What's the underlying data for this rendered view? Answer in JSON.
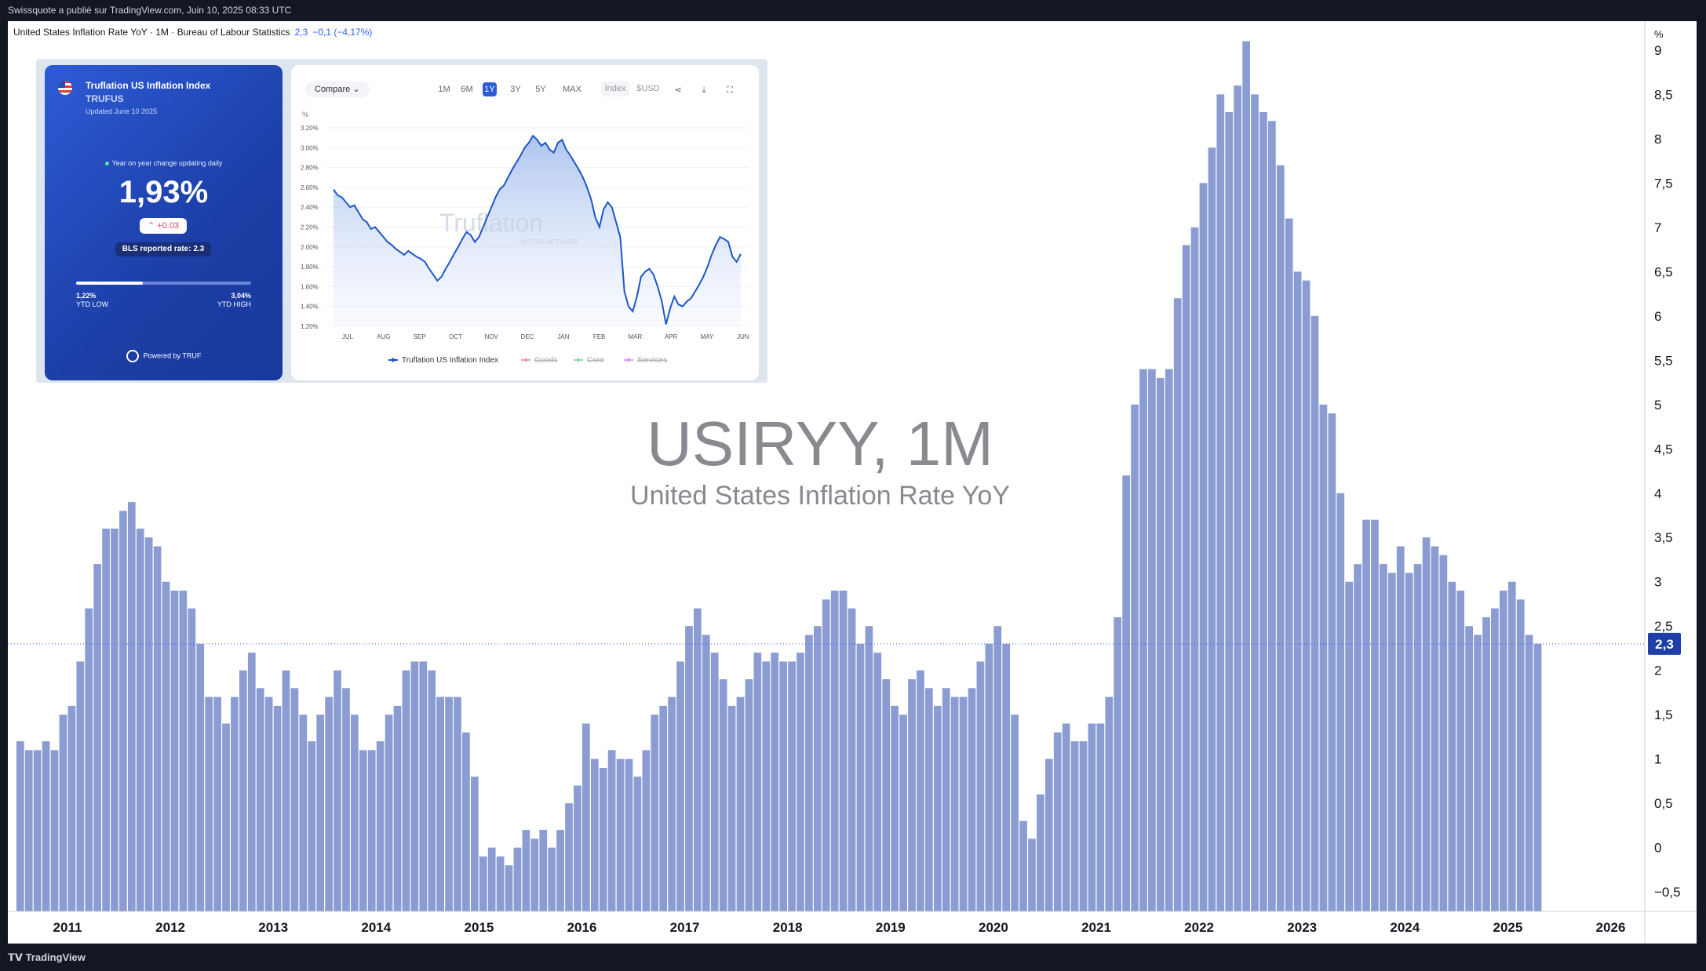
{
  "top_bar": {
    "text": "Swissquote a publié sur TradingView.com, Juin 10, 2025 08:33 UTC"
  },
  "legend": {
    "text": "United States Inflation Rate YoY · 1M · Bureau of Labour Statistics",
    "value": "2,3",
    "change": "−0,1 (−4,17%)"
  },
  "watermark": {
    "title": "USIRYY, 1M",
    "subtitle": "United States Inflation Rate YoY"
  },
  "footer": {
    "logo": "TradingView"
  },
  "last_value_label": "2,3",
  "colors": {
    "bars": "#8b9cd3",
    "card": "#2447b8",
    "line": "#1b57c8",
    "price_label": "#2962ff"
  },
  "inset": {
    "card": {
      "title": "Truflation US Inflation Index",
      "ticker": "TRUFUS",
      "updated": "Updated June 10 2025",
      "yoy_label": "Year on year change updating daily",
      "value": "1,93%",
      "delta": "+0.03",
      "bls": "BLS reported rate: 2.3",
      "ytd_position": 0.38,
      "low_value": "1,22%",
      "low_label": "YTD LOW",
      "high_value": "3,04%",
      "high_label": "YTD HIGH",
      "powered": "Powered by TRUF"
    },
    "mini_chart": {
      "compare": "Compare",
      "ranges": [
        "1M",
        "6M",
        "1Y",
        "3Y",
        "5Y",
        "MAX"
      ],
      "active_range": "1Y",
      "units": [
        "Index",
        "$USD"
      ],
      "tools": [
        "share-icon",
        "download-icon",
        "fullscreen-icon"
      ],
      "unit_label": "%",
      "y_ticks": [
        "3.20%",
        "3.00%",
        "2.80%",
        "2.60%",
        "2.40%",
        "2.20%",
        "2.00%",
        "1.80%",
        "1.60%",
        "1.40%",
        "1.20%"
      ],
      "x_ticks": [
        "JUL",
        "AUG",
        "SEP",
        "OCT",
        "NOV",
        "DEC",
        "JAN",
        "FEB",
        "MAR",
        "APR",
        "MAY",
        "JUN"
      ],
      "legend": [
        "Truflation US Inflation Index",
        "Goods",
        "Core",
        "Services"
      ],
      "watermark": "Truflation",
      "watermark_sub": "by TRUF.NETWORK",
      "series": [
        2.58,
        2.52,
        2.5,
        2.45,
        2.4,
        2.42,
        2.35,
        2.28,
        2.25,
        2.18,
        2.2,
        2.15,
        2.1,
        2.05,
        2.02,
        1.98,
        1.95,
        1.92,
        1.96,
        1.93,
        1.9,
        1.88,
        1.85,
        1.78,
        1.72,
        1.66,
        1.7,
        1.78,
        1.85,
        1.93,
        2.0,
        2.08,
        2.15,
        2.12,
        2.05,
        2.1,
        2.2,
        2.3,
        2.4,
        2.5,
        2.58,
        2.62,
        2.7,
        2.78,
        2.85,
        2.92,
        3.0,
        3.05,
        3.12,
        3.08,
        3.02,
        3.05,
        2.98,
        2.95,
        3.05,
        3.08,
        2.98,
        2.92,
        2.85,
        2.78,
        2.7,
        2.6,
        2.48,
        2.3,
        2.2,
        2.38,
        2.45,
        2.4,
        2.25,
        2.1,
        1.55,
        1.4,
        1.35,
        1.5,
        1.7,
        1.75,
        1.78,
        1.72,
        1.6,
        1.45,
        1.22,
        1.38,
        1.5,
        1.42,
        1.4,
        1.45,
        1.48,
        1.55,
        1.62,
        1.7,
        1.8,
        1.92,
        2.02,
        2.1,
        2.08,
        2.05,
        1.9,
        1.85,
        1.93
      ]
    }
  },
  "chart_data": {
    "type": "bar",
    "title": "USIRYY, 1M",
    "subtitle": "United States Inflation Rate YoY",
    "ylabel": "%",
    "ylim": [
      -0.72,
      9.3
    ],
    "y_ticks": [
      "9",
      "8,5",
      "8",
      "7,5",
      "7",
      "6,5",
      "6",
      "5,5",
      "5",
      "4,5",
      "4",
      "3,5",
      "3",
      "2,5",
      "2",
      "1,5",
      "1",
      "0,5",
      "0",
      "−0,5"
    ],
    "x_ticks": [
      "2011",
      "2012",
      "2013",
      "2014",
      "2015",
      "2016",
      "2017",
      "2018",
      "2019",
      "2020",
      "2021",
      "2022",
      "2023",
      "2024",
      "2025",
      "2026"
    ],
    "x_start": "2010-07",
    "series": [
      {
        "values": [
          1.2,
          1.1,
          1.1,
          1.2,
          1.1,
          1.5,
          1.6,
          2.1,
          2.7,
          3.2,
          3.6,
          3.6,
          3.8,
          3.9,
          3.6,
          3.5,
          3.4,
          3.0,
          2.9,
          2.9,
          2.7,
          2.3,
          1.7,
          1.7,
          1.4,
          1.7,
          2.0,
          2.2,
          1.8,
          1.7,
          1.6,
          2.0,
          1.8,
          1.5,
          1.2,
          1.5,
          1.7,
          2.0,
          1.8,
          1.5,
          1.1,
          1.1,
          1.2,
          1.5,
          1.6,
          2.0,
          2.1,
          2.1,
          2.0,
          1.7,
          1.7,
          1.7,
          1.3,
          0.8,
          -0.1,
          0.0,
          -0.1,
          -0.2,
          0.0,
          0.2,
          0.1,
          0.2,
          0.0,
          0.2,
          0.5,
          0.7,
          1.4,
          1.0,
          0.9,
          1.1,
          1.0,
          1.0,
          0.8,
          1.1,
          1.5,
          1.6,
          1.7,
          2.1,
          2.5,
          2.7,
          2.4,
          2.2,
          1.9,
          1.6,
          1.7,
          1.9,
          2.2,
          2.1,
          2.2,
          2.1,
          2.1,
          2.2,
          2.4,
          2.5,
          2.8,
          2.9,
          2.9,
          2.7,
          2.3,
          2.5,
          2.2,
          1.9,
          1.6,
          1.5,
          1.9,
          2.0,
          1.8,
          1.6,
          1.8,
          1.7,
          1.7,
          1.8,
          2.1,
          2.3,
          2.5,
          2.3,
          1.5,
          0.3,
          0.1,
          0.6,
          1.0,
          1.3,
          1.4,
          1.2,
          1.2,
          1.4,
          1.4,
          1.7,
          2.6,
          4.2,
          5.0,
          5.4,
          5.4,
          5.3,
          5.4,
          6.2,
          6.8,
          7.0,
          7.5,
          7.9,
          8.5,
          8.3,
          8.6,
          9.1,
          8.5,
          8.3,
          8.2,
          7.7,
          7.1,
          6.5,
          6.4,
          6.0,
          5.0,
          4.9,
          4.0,
          3.0,
          3.2,
          3.7,
          3.7,
          3.2,
          3.1,
          3.4,
          3.1,
          3.2,
          3.5,
          3.4,
          3.3,
          3.0,
          2.9,
          2.5,
          2.4,
          2.6,
          2.7,
          2.9,
          3.0,
          2.8,
          2.4,
          2.3
        ]
      }
    ]
  }
}
